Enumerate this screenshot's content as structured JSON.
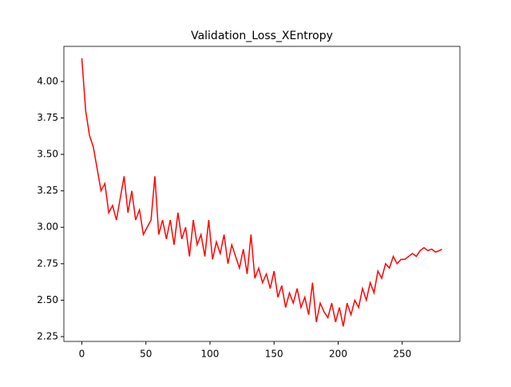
{
  "chart_data": {
    "type": "line",
    "title": "Validation_Loss_XEntropy",
    "x": [
      0,
      3,
      6,
      9,
      12,
      15,
      18,
      21,
      24,
      27,
      30,
      33,
      36,
      39,
      42,
      45,
      48,
      51,
      54,
      57,
      60,
      63,
      66,
      69,
      72,
      75,
      78,
      81,
      84,
      87,
      90,
      93,
      96,
      99,
      102,
      105,
      108,
      111,
      114,
      117,
      120,
      123,
      126,
      129,
      132,
      135,
      138,
      141,
      144,
      147,
      150,
      153,
      156,
      159,
      162,
      165,
      168,
      171,
      174,
      177,
      180,
      183,
      186,
      189,
      192,
      195,
      198,
      201,
      204,
      207,
      210,
      213,
      216,
      219,
      222,
      225,
      228,
      231,
      234,
      237,
      240,
      243,
      246,
      249,
      252,
      255,
      258,
      261,
      264,
      267,
      270,
      273,
      276,
      279,
      281
    ],
    "series": [
      {
        "color": "#ff0000",
        "values": [
          4.16,
          3.8,
          3.63,
          3.55,
          3.4,
          3.25,
          3.3,
          3.1,
          3.15,
          3.05,
          3.2,
          3.35,
          3.1,
          3.25,
          3.05,
          3.12,
          2.95,
          3.0,
          3.05,
          3.35,
          2.95,
          3.05,
          2.92,
          3.05,
          2.88,
          3.1,
          2.92,
          3.0,
          2.8,
          3.05,
          2.88,
          2.95,
          2.8,
          3.05,
          2.78,
          2.9,
          2.82,
          2.95,
          2.75,
          2.88,
          2.8,
          2.72,
          2.85,
          2.68,
          2.95,
          2.65,
          2.72,
          2.62,
          2.68,
          2.58,
          2.7,
          2.52,
          2.6,
          2.45,
          2.55,
          2.48,
          2.58,
          2.45,
          2.52,
          2.4,
          2.62,
          2.35,
          2.48,
          2.42,
          2.38,
          2.48,
          2.35,
          2.45,
          2.32,
          2.48,
          2.4,
          2.5,
          2.45,
          2.58,
          2.5,
          2.62,
          2.55,
          2.7,
          2.65,
          2.75,
          2.72,
          2.8,
          2.75,
          2.78,
          2.78,
          2.8,
          2.82,
          2.8,
          2.84,
          2.86,
          2.84,
          2.85,
          2.83,
          2.84,
          2.85
        ]
      }
    ],
    "xlim": [
      -14,
      295
    ],
    "ylim": [
      2.217,
      4.241
    ],
    "xticks": [
      0,
      50,
      100,
      150,
      200,
      250
    ],
    "yticks": [
      2.25,
      {
        "value": 2.5,
        "label": "2.50"
      },
      2.75,
      {
        "value": 3,
        "label": "3.00"
      },
      3.25,
      {
        "value": 3.5,
        "label": "3.50"
      },
      3.75,
      {
        "value": 4,
        "label": "4.00"
      }
    ]
  }
}
